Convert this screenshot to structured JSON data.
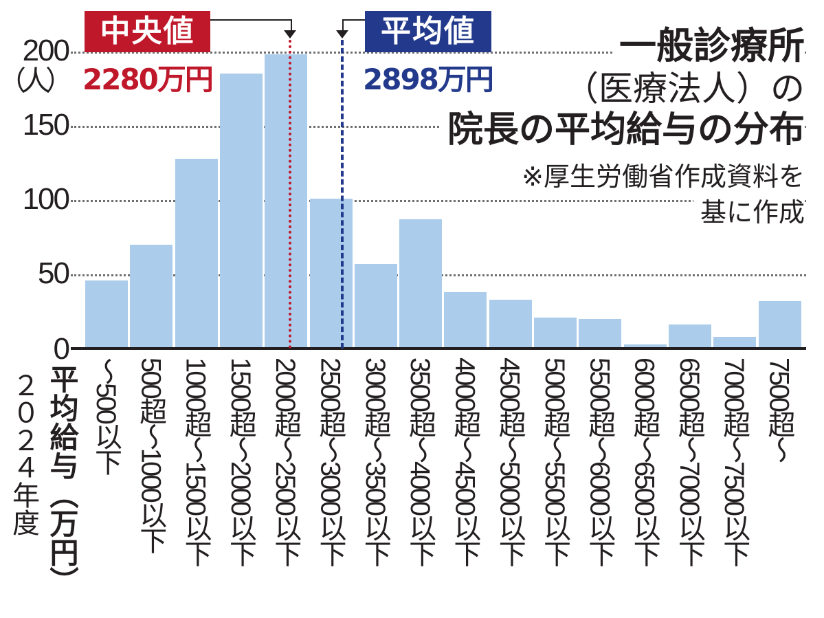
{
  "title": {
    "line1": "一般診療所",
    "line2": "（医療法人）の",
    "line3": "院長の平均給与の分布"
  },
  "source_note": {
    "line1": "※厚生労働省作成資料を",
    "line2": "基に作成"
  },
  "y_axis": {
    "unit": "（人）",
    "ticks": [
      "200",
      "150",
      "100",
      "50",
      "0"
    ]
  },
  "x_axis": {
    "title": "平均給与（万円）",
    "year": "２０２４年度"
  },
  "annotations": {
    "median": {
      "label": "中央値",
      "value": "2280万円",
      "color": "#c0182b"
    },
    "mean": {
      "label": "平均値",
      "value": "2898万円",
      "color": "#233a8c"
    }
  },
  "colors": {
    "bar": "#abcdeb",
    "median": "#c0182b",
    "mean": "#233a8c",
    "grid": "#6d6e71",
    "axis": "#231f20"
  },
  "chart_data": {
    "type": "bar",
    "title": "一般診療所（医療法人）の院長の平均給与の分布",
    "subtitle": "※厚生労働省作成資料を基に作成",
    "xlabel": "平均給与（万円） 2024年度",
    "ylabel": "（人）",
    "ylim": [
      0,
      200
    ],
    "yticks": [
      0,
      50,
      100,
      150,
      200
    ],
    "grid": true,
    "categories": [
      "～500以下",
      "500超～1000以下",
      "1000超～1500以下",
      "1500超～2000以下",
      "2000超～2500以下",
      "2500超～3000以下",
      "3000超～3500以下",
      "3500超～4000以下",
      "4000超～4500以下",
      "4500超～5000以下",
      "5000超～5500以下",
      "5500超～6000以下",
      "6000超～6500以下",
      "6500超～7000以下",
      "7000超～7500以下",
      "7500超～"
    ],
    "values": [
      46,
      70,
      128,
      185,
      198,
      101,
      57,
      87,
      38,
      33,
      21,
      20,
      3,
      16,
      8,
      32
    ],
    "annotations": [
      {
        "label": "中央値",
        "value": "2280万円",
        "x": 2280,
        "style": "dotted",
        "color": "#c0182b"
      },
      {
        "label": "平均値",
        "value": "2898万円",
        "x": 2898,
        "style": "dashed",
        "color": "#233a8c"
      }
    ]
  }
}
